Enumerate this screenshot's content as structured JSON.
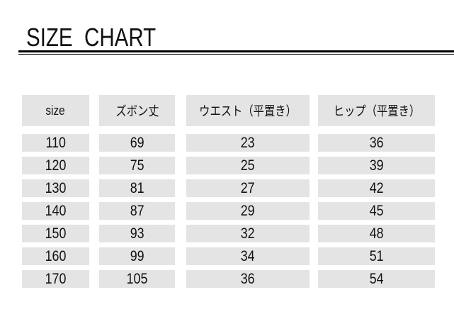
{
  "title": "SIZE  CHART",
  "table": {
    "headers": [
      "size",
      "ズボン丈",
      "ウエスト（平置き）",
      "ヒップ（平置き）"
    ],
    "rows": [
      [
        "110",
        "69",
        "23",
        "36"
      ],
      [
        "120",
        "75",
        "25",
        "39"
      ],
      [
        "130",
        "81",
        "27",
        "42"
      ],
      [
        "140",
        "87",
        "29",
        "45"
      ],
      [
        "150",
        "93",
        "32",
        "48"
      ],
      [
        "160",
        "99",
        "34",
        "51"
      ],
      [
        "170",
        "105",
        "36",
        "54"
      ]
    ]
  },
  "colors": {
    "cell_background": "#e4e4e4",
    "rule": "#000000"
  }
}
